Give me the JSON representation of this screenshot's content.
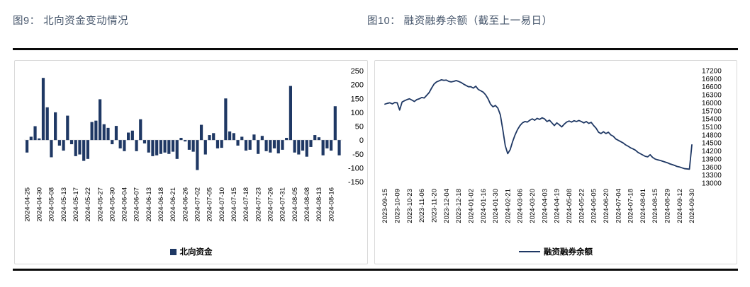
{
  "figures": [
    {
      "title": "图9： 北向资金变动情况",
      "legend": "北向资金"
    },
    {
      "title": "图10： 融资融券余额（截至上一易日）",
      "legend": "融资融券余额"
    }
  ],
  "divider_color": "#0a0a0a",
  "chart_data": [
    {
      "type": "bar",
      "title": "图9： 北向资金变动情况",
      "series_name": "北向资金",
      "bar_color": "#1F3864",
      "grid": false,
      "legend_position": "bottom",
      "ylim": [
        -150,
        250
      ],
      "yticks": [
        250,
        200,
        150,
        100,
        50,
        0,
        -50,
        -100,
        -150
      ],
      "label_every": 3,
      "x_labels": [
        "2024-04-25",
        "2024-04-30",
        "2024-05-08",
        "2024-05-13",
        "2024-05-17",
        "2024-05-22",
        "2024-05-27",
        "2024-05-30",
        "2024-06-04",
        "2024-06-07",
        "2024-06-13",
        "2024-06-18",
        "2024-06-21",
        "2024-06-26",
        "2024-07-02",
        "2024-07-05",
        "2024-07-10",
        "2024-07-15",
        "2024-07-18",
        "2024-07-23",
        "2024-07-26",
        "2024-07-31",
        "2024-08-05",
        "2024-08-08",
        "2024-08-13",
        "2024-08-16"
      ],
      "values": [
        -45,
        12,
        50,
        6,
        224,
        118,
        -62,
        100,
        -20,
        -38,
        88,
        -15,
        -58,
        -52,
        -75,
        -68,
        65,
        70,
        147,
        57,
        44,
        -15,
        51,
        -30,
        -40,
        27,
        34,
        -40,
        75,
        -12,
        -45,
        -58,
        -55,
        -50,
        -45,
        -50,
        -42,
        -68,
        8,
        -5,
        -35,
        -42,
        -108,
        55,
        -52,
        18,
        25,
        -30,
        -28,
        150,
        31,
        25,
        -20,
        12,
        -38,
        -35,
        20,
        -50,
        15,
        -40,
        -45,
        -30,
        -48,
        -35,
        8,
        195,
        -45,
        -52,
        -38,
        -60,
        -25,
        18,
        10,
        -55,
        -30,
        -38,
        122,
        -55
      ]
    },
    {
      "type": "line",
      "title": "图10： 融资融券余额（截至上一易日）",
      "series_name": "融资融券余额",
      "line_color": "#1F3864",
      "grid": false,
      "legend_position": "bottom",
      "ylim": [
        13000,
        17200
      ],
      "yticks": [
        17200,
        16900,
        16600,
        16300,
        16000,
        15700,
        15400,
        15100,
        14800,
        14500,
        14200,
        13900,
        13600,
        13300,
        13000
      ],
      "label_every": 5,
      "x_labels": [
        "2023-09-15",
        "2023-10-09",
        "2023-10-23",
        "2023-11-06",
        "2023-11-20",
        "2023-12-04",
        "2023-12-18",
        "2024-01-02",
        "2024-01-16",
        "2024-01-30",
        "2024-02-21",
        "2024-03-06",
        "2024-03-20",
        "2024-04-03",
        "2024-04-19",
        "2024-05-08",
        "2024-05-22",
        "2024-06-05",
        "2024-06-20",
        "2024-07-04",
        "2024-07-18",
        "2024-08-01",
        "2024-08-15",
        "2024-08-29",
        "2024-09-12",
        "2024-09-30"
      ],
      "values": [
        15950,
        15980,
        16000,
        15960,
        16010,
        16000,
        15730,
        16030,
        16080,
        16120,
        16150,
        16100,
        16050,
        16120,
        16150,
        16200,
        16180,
        16280,
        16380,
        16550,
        16700,
        16780,
        16820,
        16860,
        16840,
        16850,
        16800,
        16780,
        16800,
        16830,
        16800,
        16760,
        16700,
        16650,
        16600,
        16600,
        16550,
        16620,
        16500,
        16450,
        16400,
        16300,
        16150,
        15950,
        15850,
        15900,
        15800,
        15550,
        15000,
        14400,
        14100,
        14250,
        14550,
        14800,
        15000,
        15150,
        15250,
        15300,
        15280,
        15350,
        15400,
        15350,
        15420,
        15380,
        15440,
        15400,
        15300,
        15350,
        15250,
        15150,
        15250,
        15180,
        15100,
        15200,
        15280,
        15320,
        15280,
        15330,
        15300,
        15340,
        15300,
        15250,
        15300,
        15230,
        15270,
        15150,
        15050,
        14900,
        14850,
        14920,
        14850,
        14900,
        14800,
        14750,
        14650,
        14600,
        14550,
        14500,
        14430,
        14380,
        14320,
        14280,
        14230,
        14150,
        14100,
        14050,
        14000,
        13980,
        14060,
        13960,
        13900,
        13870,
        13850,
        13820,
        13790,
        13760,
        13720,
        13690,
        13660,
        13620,
        13600,
        13570,
        13540,
        13530,
        13520,
        14430
      ]
    }
  ]
}
